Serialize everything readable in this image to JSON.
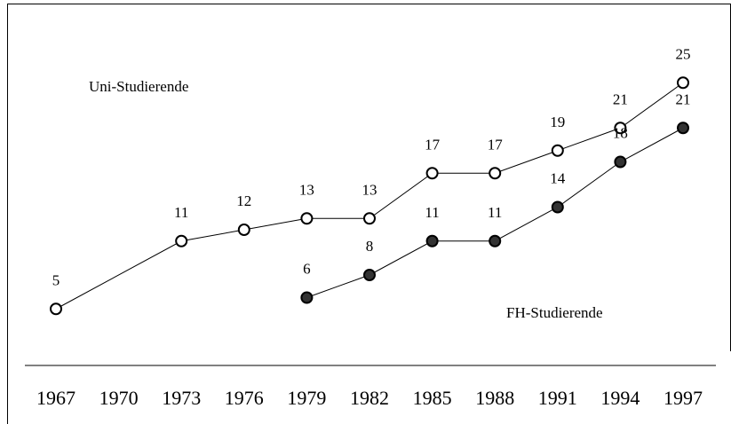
{
  "chart_data": {
    "type": "line",
    "xlim": [
      1967,
      1997
    ],
    "xticks": [
      1967,
      1970,
      1973,
      1976,
      1979,
      1982,
      1985,
      1988,
      1991,
      1994,
      1997
    ],
    "ylim": [
      0,
      32
    ],
    "series": [
      {
        "name": "Uni-Studierende",
        "color": "#ffffff",
        "x": [
          1967,
          1973,
          1976,
          1979,
          1982,
          1985,
          1988,
          1991,
          1994,
          1997
        ],
        "values": [
          5,
          11,
          12,
          13,
          13,
          17,
          17,
          19,
          21,
          25
        ]
      },
      {
        "name": "FH-Studierende",
        "color": "#333333",
        "x": [
          1979,
          1982,
          1985,
          1988,
          1991,
          1994,
          1997
        ],
        "values": [
          6,
          8,
          11,
          11,
          14,
          18,
          21
        ]
      }
    ]
  }
}
